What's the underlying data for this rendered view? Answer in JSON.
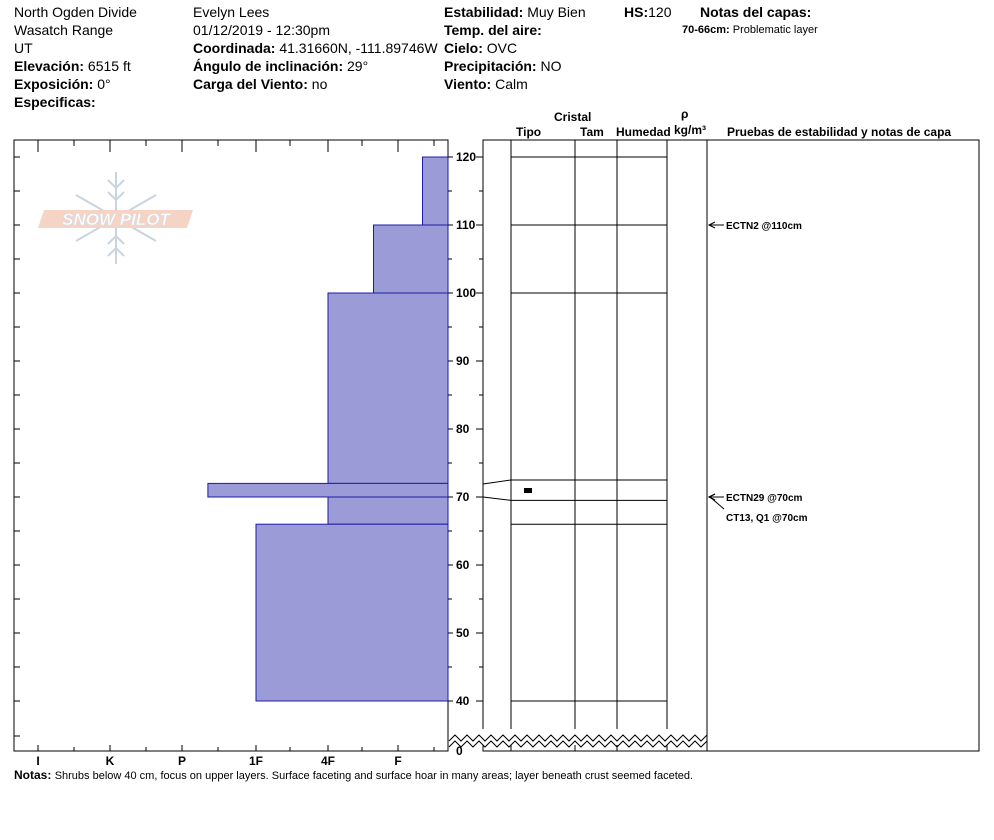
{
  "header": {
    "col1": {
      "location": "North Ogden Divide",
      "range": "Wasatch Range",
      "state": "UT",
      "elevation_label": "Elevación:",
      "elevation_value": "6515 ft",
      "exposure_label": "Exposición:",
      "exposure_value": "0°",
      "specifics_label": "Especificas:"
    },
    "col2": {
      "observer": "Evelyn Lees",
      "datetime": "01/12/2019 - 12:30pm",
      "coord_label": "Coordinada:",
      "coord_value": "41.31660N, -111.89746W",
      "slope_label": "Ángulo de inclinación:",
      "slope_value": "29°",
      "wind_load_label": "Carga del Viento:",
      "wind_load_value": "no"
    },
    "col3": {
      "stability_label": "Estabilidad:",
      "stability_value": "Muy Bien",
      "air_temp_label": "Temp. del aire:",
      "air_temp_value": "",
      "sky_label": "Cielo:",
      "sky_value": "OVC",
      "precip_label": "Precipitación:",
      "precip_value": "NO",
      "wind_label": "Viento:",
      "wind_value": "Calm"
    },
    "hs_label": "HS:",
    "hs_value": "120",
    "layer_notes_label": "Notas del capas:",
    "layer_note_range": "70-66cm:",
    "layer_note_text": "Problematic layer"
  },
  "logo_text": "SNOW PILOT",
  "columns": {
    "crystal": "Cristal",
    "type": "Tipo",
    "size": "Tam",
    "moisture": "Humedad",
    "rho": "ρ",
    "density_unit": "kg/m³",
    "stability_tests": "Pruebas de estabilidad y notas de capa"
  },
  "chart_data": {
    "type": "bar",
    "orientation": "horizontal-profile",
    "hardness_scale": [
      "I",
      "K",
      "P",
      "1F",
      "4F",
      "F"
    ],
    "y_ticks": [
      "120",
      "110",
      "100",
      "90",
      "80",
      "70",
      "60",
      "50",
      "40",
      "0"
    ],
    "ylim": [
      0,
      120
    ],
    "layers": [
      {
        "top": 120,
        "bottom": 110,
        "hardness_index": 5.35
      },
      {
        "top": 110,
        "bottom": 100,
        "hardness_index": 4.65
      },
      {
        "top": 100,
        "bottom": 72,
        "hardness_index": 4.0
      },
      {
        "top": 72,
        "bottom": 70,
        "hardness_index": 2.35
      },
      {
        "top": 70,
        "bottom": 66,
        "hardness_index": 4.0
      },
      {
        "top": 66,
        "bottom": 40,
        "hardness_index": 3.0
      }
    ],
    "layer_boundaries": [
      120,
      110,
      100,
      72.5,
      69.5,
      66,
      40
    ],
    "tests": [
      {
        "label": "ECTN2 @110cm",
        "depth": 110
      },
      {
        "label": "ECTN29 @70cm",
        "depth": 70
      },
      {
        "label": "CT13, Q1 @70cm",
        "depth": 70
      }
    ]
  },
  "notes_label": "Notas:",
  "notes_text": "Shrubs below 40 cm, focus on upper layers.  Surface faceting and surface hoar in many areas; layer beneath crust seemed faceted."
}
